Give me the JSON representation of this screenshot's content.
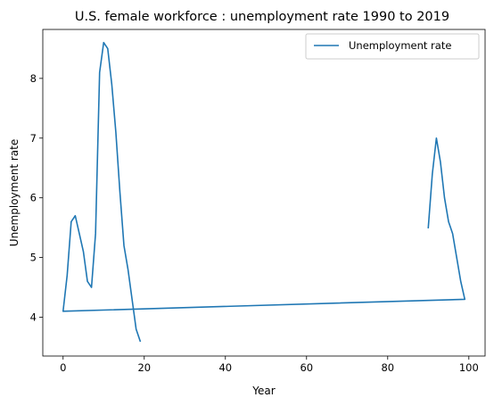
{
  "chart_data": {
    "type": "line",
    "title": "U.S. female workforce : unemployment rate 1990 to 2019",
    "xlabel": "Year",
    "ylabel": "Unemployment rate",
    "xlim": [
      -5.0,
      104.0
    ],
    "ylim": [
      3.35,
      8.82
    ],
    "grid": false,
    "legend_position": "top-right",
    "x_ticks": [
      0,
      20,
      40,
      60,
      80,
      100
    ],
    "y_ticks": [
      4,
      5,
      6,
      7,
      8
    ],
    "series": [
      {
        "name": "Unemployment rate",
        "color": "#1f77b4",
        "x": [
          90,
          91,
          92,
          93,
          94,
          95,
          96,
          97,
          98,
          99,
          0,
          1,
          2,
          3,
          4,
          5,
          6,
          7,
          8,
          9,
          10,
          11,
          12,
          13,
          14,
          15,
          16,
          17,
          18,
          19
        ],
        "y": [
          5.5,
          6.4,
          7.0,
          6.6,
          6.0,
          5.6,
          5.4,
          5.0,
          4.6,
          4.3,
          4.1,
          4.7,
          5.6,
          5.7,
          5.4,
          5.1,
          4.6,
          4.5,
          5.4,
          8.1,
          8.6,
          8.5,
          7.9,
          7.1,
          6.1,
          5.2,
          4.8,
          4.3,
          3.8,
          3.6
        ]
      }
    ]
  }
}
